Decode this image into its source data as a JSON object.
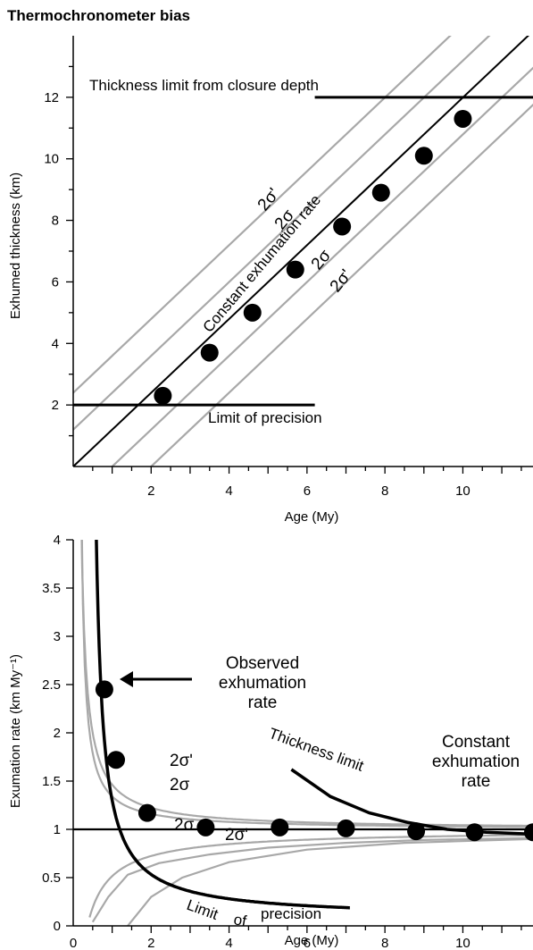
{
  "figure": {
    "title": "Thermochronometer bias"
  },
  "chart_data": [
    {
      "type": "scatter",
      "title": "",
      "xlabel": "Age (My)",
      "ylabel": "Exhumed thickness (km)",
      "xlim": [
        0,
        11.8
      ],
      "ylim": [
        0,
        14
      ],
      "x_ticks": [
        "2",
        "4",
        "6",
        "8",
        "10"
      ],
      "y_ticks": [
        "2",
        "4",
        "6",
        "8",
        "10",
        "12"
      ],
      "series": [
        {
          "x": [
            2.3,
            3.5,
            4.6,
            5.7,
            6.9,
            7.9,
            9.0,
            10.0
          ],
          "y": [
            2.3,
            3.7,
            5.0,
            6.4,
            7.8,
            8.9,
            10.1,
            11.3
          ]
        }
      ],
      "constant_rate_line": {
        "x": [
          0,
          11.8
        ],
        "y": [
          0,
          14.15
        ]
      },
      "envelope_offsets_my": {
        "inner": 1.0,
        "outer": 2.0
      },
      "thickness_limit_km": 12,
      "precision_limit_km": 2,
      "annotations": {
        "thickness_limit": "Thickness limit from closure depth",
        "precision_limit": "Limit of precision",
        "constant_rate": "Constant exhumation rate",
        "outer_upper": "2σʹ",
        "inner_upper": "2σ",
        "inner_lower": "2σ",
        "outer_lower": "2σʹ"
      }
    },
    {
      "type": "scatter",
      "title": "",
      "xlabel": "Age (My)",
      "ylabel": "Exumation rate (km My⁻¹)",
      "xlim": [
        0,
        11.8
      ],
      "ylim": [
        0,
        4
      ],
      "x_ticks": [
        "0",
        "2",
        "4",
        "6",
        "8",
        "10"
      ],
      "y_ticks": [
        "0",
        "0.5",
        "1",
        "1.5",
        "2",
        "2.5",
        "3",
        "3.5",
        "4"
      ],
      "series": [
        {
          "x": [
            0.8,
            1.1,
            1.9,
            3.4,
            5.3,
            7.0,
            8.8,
            10.3,
            11.8
          ],
          "y": [
            2.45,
            1.72,
            1.17,
            1.02,
            1.02,
            1.01,
            0.98,
            0.97,
            0.97
          ]
        }
      ],
      "constant_rate": 1.0,
      "annotations": {
        "observed_rate": [
          "Observed",
          "exhumation",
          "rate"
        ],
        "constant_rate": [
          "Constant",
          "exhumation",
          "rate"
        ],
        "thickness_limit": "Thickness limit",
        "precision_limit": [
          "Limit",
          "of",
          "precision"
        ],
        "outer_upper": "2σʹ",
        "inner_upper": "2σ",
        "inner_lower": "2σ",
        "outer_lower": "2σʹ"
      }
    }
  ]
}
